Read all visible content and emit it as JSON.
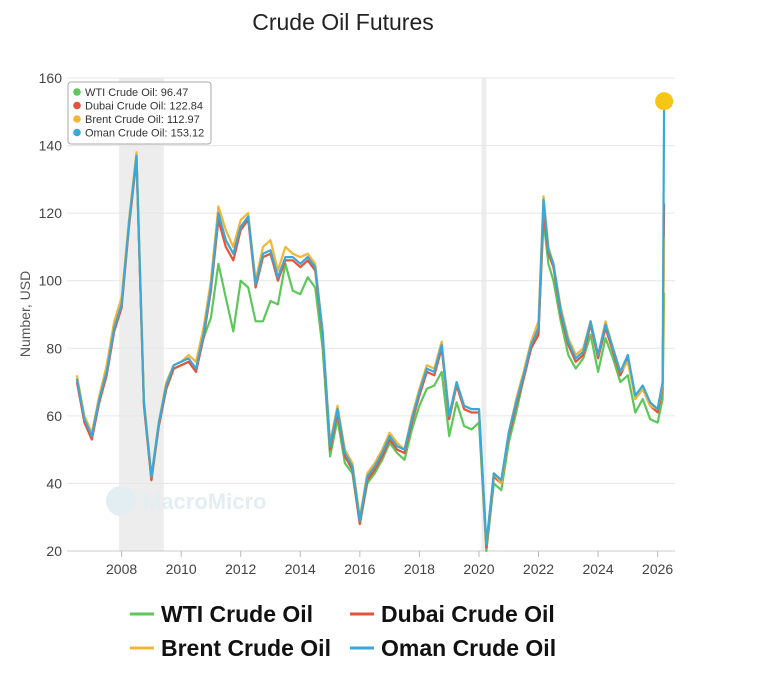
{
  "chart_data": {
    "type": "line",
    "title": "Crude Oil Futures",
    "xlabel": "",
    "ylabel": "Number, USD",
    "ylim": [
      20,
      160
    ],
    "yticks": [
      20,
      40,
      60,
      80,
      100,
      120,
      140,
      160
    ],
    "xlim": [
      "2006-03",
      "2026-08"
    ],
    "xticks": [
      "2008",
      "2010",
      "2012",
      "2014",
      "2016",
      "2018",
      "2020",
      "2022",
      "2024",
      "2026"
    ],
    "grid": true,
    "legend_position": "bottom",
    "watermark": "MacroMicro",
    "shaded_periods": [
      [
        "2007-12",
        "2009-06"
      ],
      [
        "2020-02",
        "2020-04"
      ]
    ],
    "x": [
      "2006-07",
      "2006-10",
      "2007-01",
      "2007-04",
      "2007-07",
      "2007-10",
      "2008-01",
      "2008-04",
      "2008-07",
      "2008-10",
      "2009-01",
      "2009-04",
      "2009-07",
      "2009-10",
      "2010-01",
      "2010-04",
      "2010-07",
      "2010-10",
      "2011-01",
      "2011-04",
      "2011-07",
      "2011-10",
      "2012-01",
      "2012-04",
      "2012-07",
      "2012-10",
      "2013-01",
      "2013-04",
      "2013-07",
      "2013-10",
      "2014-01",
      "2014-04",
      "2014-07",
      "2014-10",
      "2015-01",
      "2015-04",
      "2015-07",
      "2015-10",
      "2016-01",
      "2016-04",
      "2016-07",
      "2016-10",
      "2017-01",
      "2017-04",
      "2017-07",
      "2017-10",
      "2018-01",
      "2018-04",
      "2018-07",
      "2018-10",
      "2019-01",
      "2019-04",
      "2019-07",
      "2019-10",
      "2020-01",
      "2020-04",
      "2020-07",
      "2020-10",
      "2021-01",
      "2021-04",
      "2021-07",
      "2021-10",
      "2022-01",
      "2022-03",
      "2022-05",
      "2022-07",
      "2022-10",
      "2023-01",
      "2023-04",
      "2023-07",
      "2023-10",
      "2024-01",
      "2024-04",
      "2024-07",
      "2024-10",
      "2025-01",
      "2025-04",
      "2025-07",
      "2025-10",
      "2026-01",
      "2026-03-01",
      "2026-03-20"
    ],
    "series": [
      {
        "name": "WTI Crude Oil",
        "color": "#5cc85a",
        "values": [
          71,
          59,
          54,
          64,
          74,
          87,
          94,
          117,
          136,
          64,
          41,
          57,
          68,
          74,
          75,
          76,
          74,
          83,
          89,
          105,
          95,
          85,
          100,
          98,
          88,
          88,
          94,
          93,
          105,
          97,
          96,
          101,
          98,
          80,
          48,
          59,
          46,
          43,
          28,
          40,
          43,
          47,
          52,
          49,
          47,
          56,
          63,
          68,
          69,
          73,
          54,
          64,
          57,
          56,
          58,
          20,
          40,
          38,
          52,
          61,
          71,
          80,
          85,
          118,
          105,
          100,
          88,
          78,
          74,
          77,
          84,
          73,
          83,
          77,
          70,
          72,
          61,
          65,
          59,
          58,
          65,
          96.47
        ]
      },
      {
        "name": "Dubai Crude Oil",
        "color": "#e5533a",
        "values": [
          70,
          58,
          53,
          64,
          72,
          85,
          92,
          116,
          136,
          63,
          41,
          57,
          68,
          74,
          75,
          76,
          73,
          83,
          97,
          118,
          110,
          106,
          115,
          118,
          98,
          107,
          108,
          100,
          106,
          106,
          104,
          106,
          103,
          84,
          50,
          61,
          48,
          44,
          28,
          41,
          44,
          48,
          53,
          50,
          49,
          58,
          66,
          73,
          72,
          80,
          59,
          69,
          62,
          61,
          61,
          21,
          42,
          40,
          54,
          63,
          71,
          80,
          84,
          120,
          108,
          104,
          90,
          81,
          76,
          78,
          87,
          77,
          86,
          79,
          72,
          77,
          65,
          68,
          63,
          61,
          68,
          122.84
        ]
      },
      {
        "name": "Brent Crude Oil",
        "color": "#f2b535",
        "values": [
          72,
          60,
          55,
          66,
          75,
          88,
          95,
          118,
          138,
          65,
          42,
          58,
          70,
          75,
          76,
          78,
          76,
          86,
          100,
          122,
          115,
          110,
          118,
          120,
          100,
          110,
          112,
          103,
          110,
          108,
          107,
          108,
          105,
          85,
          52,
          63,
          50,
          46,
          30,
          43,
          46,
          50,
          55,
          52,
          50,
          60,
          68,
          75,
          74,
          82,
          60,
          70,
          63,
          62,
          62,
          22,
          43,
          40,
          55,
          65,
          73,
          82,
          88,
          125,
          110,
          105,
          92,
          83,
          78,
          80,
          88,
          78,
          88,
          80,
          73,
          76,
          65,
          68,
          63,
          62,
          69,
          112.97
        ]
      },
      {
        "name": "Oman Crude Oil",
        "color": "#3aa8d8",
        "values": [
          71,
          59,
          54,
          65,
          73,
          86,
          93,
          117,
          137,
          64,
          42,
          58,
          69,
          75,
          76,
          77,
          74,
          84,
          98,
          120,
          112,
          108,
          116,
          119,
          99,
          108,
          109,
          101,
          107,
          107,
          105,
          107,
          104,
          85,
          51,
          62,
          49,
          45,
          29,
          42,
          45,
          49,
          54,
          51,
          50,
          59,
          67,
          74,
          73,
          81,
          60,
          70,
          63,
          62,
          62,
          22,
          43,
          41,
          55,
          64,
          72,
          81,
          86,
          124,
          109,
          105,
          91,
          82,
          77,
          79,
          88,
          78,
          87,
          80,
          73,
          78,
          66,
          69,
          64,
          62,
          70,
          153.12
        ]
      }
    ],
    "tooltip": {
      "items": [
        {
          "label": "WTI Crude Oil: 96.47",
          "color": "#5cc85a"
        },
        {
          "label": "Dubai Crude Oil: 122.84",
          "color": "#e5533a"
        },
        {
          "label": "Brent Crude Oil: 112.97",
          "color": "#f2b535"
        },
        {
          "label": "Oman Crude Oil: 153.12",
          "color": "#3aa8d8"
        }
      ],
      "marker_color": "#f5c518"
    }
  }
}
